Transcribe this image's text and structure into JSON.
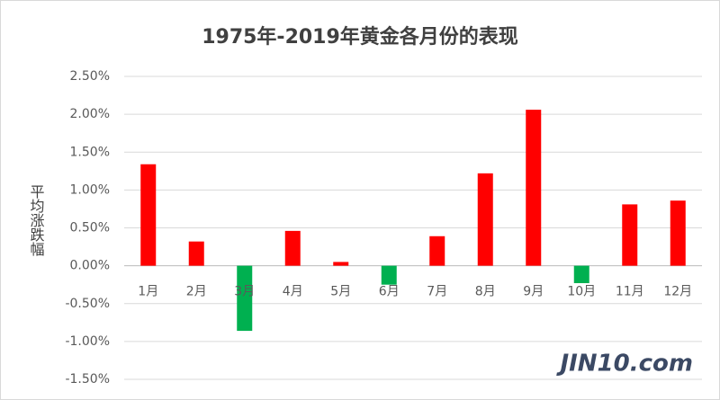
{
  "chart_data": {
    "type": "bar",
    "title": "1975年-2019年黄金各月份的表现",
    "y_label": "平均涨跌幅",
    "categories": [
      "1月",
      "2月",
      "3月",
      "4月",
      "5月",
      "6月",
      "7月",
      "8月",
      "9月",
      "10月",
      "11月",
      "12月"
    ],
    "values": [
      1.34,
      0.32,
      -0.86,
      0.46,
      0.05,
      -0.25,
      0.39,
      1.22,
      2.06,
      -0.23,
      0.81,
      0.86
    ],
    "positive_color": "#ff0000",
    "negative_color": "#00b050",
    "ylim": [
      -1.5,
      2.5
    ],
    "yticks": [
      {
        "value": -1.5,
        "label": "-1.50%"
      },
      {
        "value": -1,
        "label": "-1.00%"
      },
      {
        "value": -0.5,
        "label": "-0.50%"
      },
      {
        "value": 0,
        "label": "0.00%"
      },
      {
        "value": 0.5,
        "label": "0.50%"
      },
      {
        "value": 1,
        "label": "1.00%"
      },
      {
        "value": 1.5,
        "label": "1.50%"
      },
      {
        "value": 2,
        "label": "2.00%"
      },
      {
        "value": 2.5,
        "label": "2.50%"
      }
    ],
    "grid": true,
    "watermark": "JIN10.com"
  }
}
